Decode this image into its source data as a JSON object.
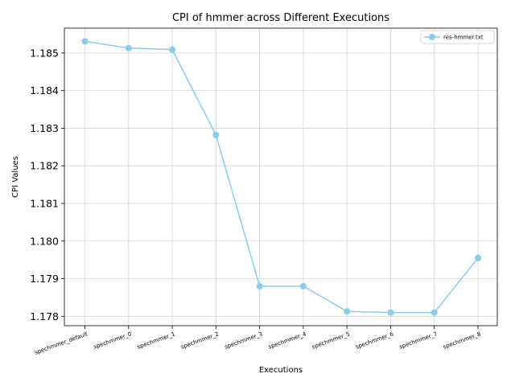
{
  "chart_data": {
    "type": "line",
    "title": "CPI of hmmer across Different Executions",
    "xlabel": "Executions",
    "ylabel": "CPI Values",
    "categories": [
      "spechmmer_default",
      "spechmmer_0",
      "spechmmer_1",
      "spechmmer_2",
      "spechmmer_3",
      "spechmmer_4",
      "spechmmer_5",
      "spechmmer_6",
      "spechmmer_7",
      "spechmmer_8"
    ],
    "series": [
      {
        "name": "res-hmmer.txt",
        "values": [
          1.18531,
          1.18513,
          1.18509,
          1.18282,
          1.1788,
          1.1788,
          1.17813,
          1.1781,
          1.1781,
          1.17955
        ],
        "color": "#87CEEB"
      }
    ],
    "yticks": [
      "1.178",
      "1.179",
      "1.180",
      "1.181",
      "1.182",
      "1.183",
      "1.184",
      "1.185"
    ],
    "ylim": [
      1.17775,
      1.18566
    ],
    "grid": true,
    "legend_position": "top-right",
    "xtick_rotation": "rotated ~20 degrees"
  }
}
